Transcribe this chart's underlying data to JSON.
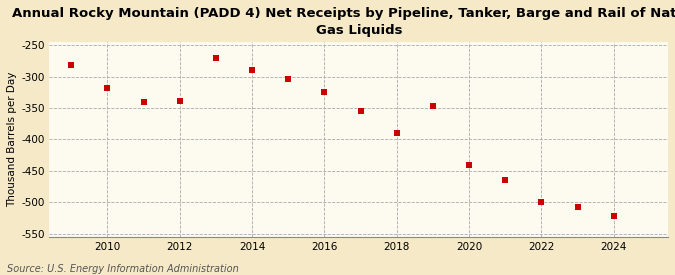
{
  "title": "Annual Rocky Mountain (PADD 4) Net Receipts by Pipeline, Tanker, Barge and Rail of Natural\nGas Liquids",
  "ylabel": "Thousand Barrels per Day",
  "source": "Source: U.S. Energy Information Administration",
  "years": [
    2009,
    2010,
    2011,
    2012,
    2013,
    2014,
    2015,
    2016,
    2017,
    2018,
    2019,
    2020,
    2021,
    2022,
    2023,
    2024
  ],
  "values": [
    -282,
    -318,
    -340,
    -338,
    -270,
    -290,
    -303,
    -325,
    -355,
    -390,
    -347,
    -440,
    -465,
    -500,
    -508,
    -522
  ],
  "marker_color": "#cc0000",
  "marker": "s",
  "marker_size": 5,
  "fig_background_color": "#f5e9c8",
  "axes_background_color": "#fdfaf0",
  "grid_color": "#aaaaaa",
  "ylim": [
    -555,
    -245
  ],
  "yticks": [
    -550,
    -500,
    -450,
    -400,
    -350,
    -300,
    -250
  ],
  "xlim": [
    2008.4,
    2025.5
  ],
  "xticks": [
    2010,
    2012,
    2014,
    2016,
    2018,
    2020,
    2022,
    2024
  ],
  "title_fontsize": 9.5,
  "label_fontsize": 7.5,
  "tick_fontsize": 7.5,
  "source_fontsize": 7
}
